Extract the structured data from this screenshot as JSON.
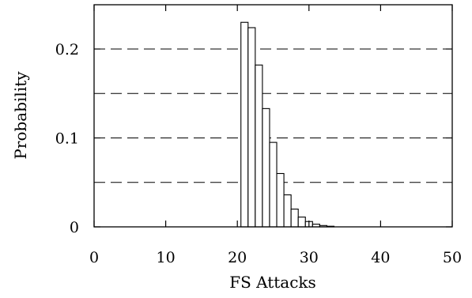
{
  "chart_data": {
    "type": "bar",
    "title": "",
    "xlabel": "FS Attacks",
    "ylabel": "Probability",
    "xlim": [
      0,
      50
    ],
    "ylim": [
      0,
      0.25
    ],
    "grid": "dashed horizontal at 0.05 intervals",
    "x_ticks": [
      "0",
      "10",
      "20",
      "30",
      "40",
      "50"
    ],
    "y_ticks": [
      "0",
      "0.1",
      "0.2"
    ],
    "x": [
      21,
      22,
      23,
      24,
      25,
      26,
      27,
      28,
      29,
      30,
      31,
      32,
      33
    ],
    "values": [
      0.23,
      0.224,
      0.182,
      0.133,
      0.095,
      0.06,
      0.036,
      0.02,
      0.011,
      0.006,
      0.003,
      0.0015,
      0.0007
    ]
  }
}
